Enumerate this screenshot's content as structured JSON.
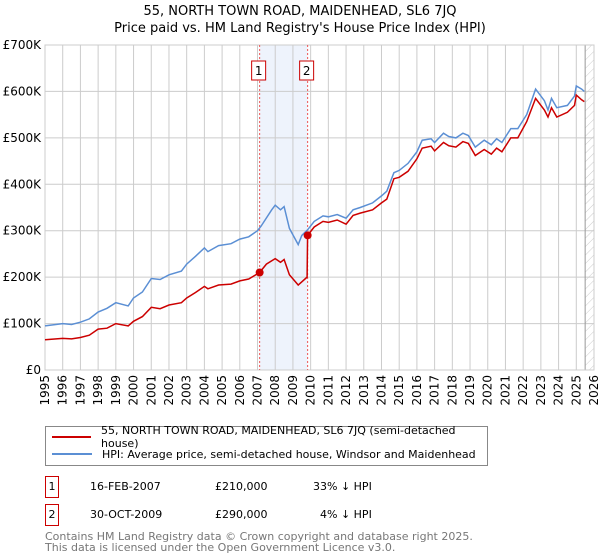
{
  "chart_data": {
    "type": "line",
    "title": "55, NORTH TOWN ROAD, MAIDENHEAD, SL6 7JQ",
    "subtitle": "Price paid vs. HM Land Registry's House Price Index (HPI)",
    "xlim": [
      1995,
      2026
    ],
    "ylim": [
      0,
      700
    ],
    "yticks": [
      {
        "v": 0,
        "label": "£0"
      },
      {
        "v": 100,
        "label": "£100K"
      },
      {
        "v": 200,
        "label": "£200K"
      },
      {
        "v": 300,
        "label": "£300K"
      },
      {
        "v": 400,
        "label": "£400K"
      },
      {
        "v": 500,
        "label": "£500K"
      },
      {
        "v": 600,
        "label": "£600K"
      },
      {
        "v": 700,
        "label": "£700K"
      }
    ],
    "xticks": [
      "1995",
      "1996",
      "1997",
      "1998",
      "1999",
      "2000",
      "2001",
      "2002",
      "2003",
      "2004",
      "2005",
      "2006",
      "2007",
      "2008",
      "2009",
      "2010",
      "2011",
      "2012",
      "2013",
      "2014",
      "2015",
      "2016",
      "2017",
      "2018",
      "2019",
      "2020",
      "2021",
      "2022",
      "2023",
      "2024",
      "2025",
      "2026"
    ],
    "grid": true,
    "series": [
      {
        "name": "55, NORTH TOWN ROAD, MAIDENHEAD, SL6 7JQ (semi-detached house)",
        "color": "#cc0000",
        "x": [
          1995,
          1996,
          1996.5,
          1997,
          1997.5,
          1998,
          1998.5,
          1999,
          1999.7,
          2000,
          2000.5,
          2001,
          2001.5,
          2002,
          2002.7,
          2003,
          2003.5,
          2004,
          2004.2,
          2004.8,
          2005.5,
          2006,
          2006.5,
          2007.12,
          2007.5,
          2008,
          2008.3,
          2008.5,
          2008.8,
          2009.3,
          2009.8,
          2009.83,
          2010.2,
          2010.7,
          2011,
          2011.5,
          2012,
          2012.4,
          2012.8,
          2013.5,
          2014,
          2014.3,
          2014.7,
          2015,
          2015.5,
          2016,
          2016.3,
          2016.8,
          2017,
          2017.5,
          2017.8,
          2018.2,
          2018.6,
          2018.9,
          2019.3,
          2019.8,
          2020.2,
          2020.5,
          2020.8,
          2021.3,
          2021.7,
          2022.2,
          2022.7,
          2023.2,
          2023.4,
          2023.6,
          2023.9,
          2024.5,
          2024.9,
          2025.0,
          2025.3,
          2025.45
        ],
        "y": [
          65,
          68,
          67,
          70,
          75,
          88,
          90,
          100,
          95,
          105,
          115,
          135,
          132,
          140,
          145,
          155,
          167,
          180,
          175,
          183,
          185,
          192,
          196,
          210,
          228,
          240,
          232,
          238,
          205,
          183,
          200,
          290,
          308,
          320,
          318,
          323,
          314,
          333,
          338,
          345,
          360,
          368,
          412,
          415,
          428,
          455,
          478,
          482,
          472,
          490,
          483,
          480,
          492,
          488,
          462,
          475,
          465,
          478,
          470,
          500,
          500,
          535,
          585,
          560,
          545,
          565,
          545,
          555,
          570,
          592,
          582,
          578
        ]
      },
      {
        "name": "HPI: Average price, semi-detached house, Windsor and Maidenhead",
        "color": "#5b8fd4",
        "x": [
          1995,
          1996,
          1996.5,
          1997,
          1997.5,
          1998,
          1998.5,
          1999,
          1999.7,
          2000,
          2000.5,
          2001,
          2001.5,
          2002,
          2002.7,
          2003,
          2003.5,
          2004,
          2004.2,
          2004.8,
          2005.5,
          2006,
          2006.5,
          2007,
          2007.2,
          2007.8,
          2008,
          2008.3,
          2008.5,
          2008.8,
          2009.3,
          2009.5,
          2009.83,
          2010.2,
          2010.7,
          2011,
          2011.5,
          2012,
          2012.4,
          2012.8,
          2013.5,
          2014,
          2014.3,
          2014.7,
          2015,
          2015.5,
          2016,
          2016.3,
          2016.8,
          2017,
          2017.5,
          2017.8,
          2018.2,
          2018.6,
          2018.9,
          2019.3,
          2019.8,
          2020.2,
          2020.5,
          2020.8,
          2021.3,
          2021.7,
          2022.2,
          2022.7,
          2023.2,
          2023.4,
          2023.6,
          2023.9,
          2024.5,
          2024.9,
          2025.0,
          2025.3,
          2025.45
        ],
        "y": [
          95,
          100,
          98,
          103,
          110,
          125,
          133,
          145,
          138,
          155,
          168,
          197,
          195,
          205,
          213,
          228,
          245,
          263,
          255,
          268,
          272,
          282,
          287,
          300,
          310,
          345,
          355,
          345,
          352,
          305,
          270,
          290,
          302,
          320,
          332,
          330,
          335,
          327,
          345,
          350,
          360,
          375,
          385,
          425,
          430,
          445,
          470,
          495,
          498,
          490,
          510,
          503,
          500,
          510,
          505,
          480,
          495,
          485,
          498,
          490,
          520,
          520,
          550,
          605,
          580,
          560,
          585,
          565,
          570,
          590,
          612,
          605,
          600
        ]
      }
    ],
    "sales": [
      {
        "label": "1",
        "x": 2007.12,
        "y": 210
      },
      {
        "label": "2",
        "x": 2009.83,
        "y": 290
      }
    ],
    "forecast_from": 2025.5
  },
  "legend": {
    "red": "55, NORTH TOWN ROAD, MAIDENHEAD, SL6 7JQ (semi-detached house)",
    "blue": "HPI: Average price, semi-detached house, Windsor and Maidenhead"
  },
  "transactions": [
    {
      "num": "1",
      "date": "16-FEB-2007",
      "price": "£210,000",
      "hpi": "33% ↓ HPI"
    },
    {
      "num": "2",
      "date": "30-OCT-2009",
      "price": "£290,000",
      "hpi": "4% ↓ HPI"
    }
  ],
  "footer": {
    "line1": "Contains HM Land Registry data © Crown copyright and database right 2025.",
    "line2": "This data is licensed under the Open Government Licence v3.0."
  }
}
